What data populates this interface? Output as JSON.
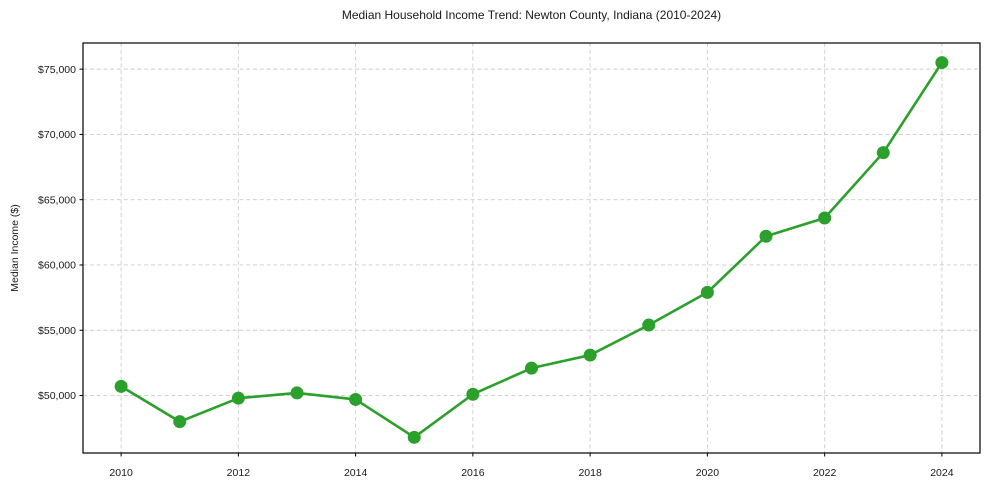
{
  "chart_data": {
    "type": "line",
    "title": "Median Household Income Trend: Newton County, Indiana (2010-2024)",
    "xlabel": "",
    "ylabel": "Median Income ($)",
    "series": [
      {
        "name": "Median Household Income",
        "x": [
          2010,
          2011,
          2012,
          2013,
          2014,
          2015,
          2016,
          2017,
          2018,
          2019,
          2020,
          2021,
          2022,
          2023,
          2024
        ],
        "values": [
          50700,
          48000,
          49800,
          50200,
          49700,
          46800,
          50100,
          52100,
          53100,
          55400,
          57900,
          62200,
          63600,
          68600,
          75500
        ]
      }
    ],
    "xlim": [
      2009.35,
      2024.65
    ],
    "ylim": [
      45600,
      77000
    ],
    "x_ticks": [
      2010,
      2012,
      2014,
      2016,
      2018,
      2020,
      2022,
      2024
    ],
    "x_tick_labels": [
      "2010",
      "2012",
      "2014",
      "2016",
      "2018",
      "2020",
      "2022",
      "2024"
    ],
    "y_ticks": [
      50000,
      55000,
      60000,
      65000,
      70000,
      75000
    ],
    "y_tick_labels": [
      "$50,000",
      "$55,000",
      "$60,000",
      "$65,000",
      "$70,000",
      "$75,000"
    ],
    "grid": true,
    "grid_style": "dashed",
    "legend": false,
    "colors": {
      "line": "#2ca02c",
      "marker": "#2ca02c",
      "grid": "#cccccc",
      "axis": "#000000",
      "tick_text": "#1a1a1a",
      "background": "#ffffff"
    }
  }
}
